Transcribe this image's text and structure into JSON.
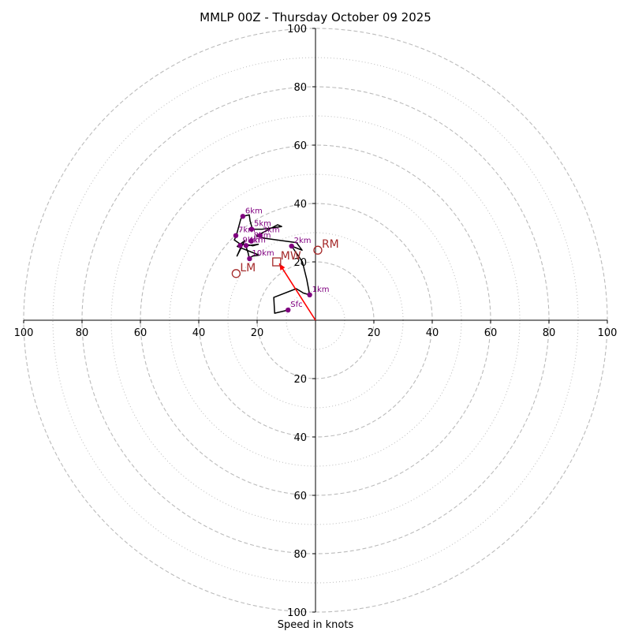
{
  "chart_data": {
    "type": "hodograph",
    "title": "MMLP 00Z - Thursday October 09 2025",
    "xlabel": "Speed in knots",
    "range": [
      -100,
      100
    ],
    "rings_major": [
      20,
      40,
      60,
      80,
      100
    ],
    "rings_minor": [
      10,
      30,
      50,
      70,
      90
    ],
    "x_ticks": [
      {
        "v": -100,
        "label": "100"
      },
      {
        "v": -80,
        "label": "80"
      },
      {
        "v": -60,
        "label": "60"
      },
      {
        "v": -40,
        "label": "40"
      },
      {
        "v": -20,
        "label": "20"
      },
      {
        "v": 20,
        "label": "20"
      },
      {
        "v": 40,
        "label": "40"
      },
      {
        "v": 60,
        "label": "60"
      },
      {
        "v": 80,
        "label": "80"
      },
      {
        "v": 100,
        "label": "100"
      }
    ],
    "y_ticks": [
      {
        "v": 100,
        "label": "100"
      },
      {
        "v": 80,
        "label": "80"
      },
      {
        "v": 60,
        "label": "60"
      },
      {
        "v": 40,
        "label": "40"
      },
      {
        "v": 20,
        "label": "20"
      },
      {
        "v": -20,
        "label": "20"
      },
      {
        "v": -40,
        "label": "40"
      },
      {
        "v": -60,
        "label": "60"
      },
      {
        "v": -80,
        "label": "80"
      },
      {
        "v": -100,
        "label": "100"
      }
    ],
    "trace": [
      [
        -9.4,
        3.5
      ],
      [
        -14.0,
        2.4
      ],
      [
        -14.3,
        7.8
      ],
      [
        -6.6,
        10.8
      ],
      [
        -4.1,
        9.3
      ],
      [
        -2.0,
        8.7
      ],
      [
        -3.0,
        14.0
      ],
      [
        -4.5,
        20.0
      ],
      [
        -8.2,
        25.4
      ],
      [
        -4.6,
        24.0
      ],
      [
        -6.5,
        26.6
      ],
      [
        -17.6,
        28.1
      ],
      [
        -20.2,
        28.9
      ],
      [
        -13.0,
        32.7
      ],
      [
        -11.6,
        32.1
      ],
      [
        -18.3,
        31.2
      ],
      [
        -21.6,
        31.2
      ],
      [
        -22.4,
        34.0
      ],
      [
        -22.7,
        36.1
      ],
      [
        -24.9,
        35.6
      ],
      [
        -25.6,
        34.7
      ],
      [
        -27.1,
        29.1
      ],
      [
        -27.8,
        27.5
      ],
      [
        -25.8,
        26.1
      ],
      [
        -23.3,
        25.9
      ],
      [
        -21.5,
        25.5
      ],
      [
        -19.6,
        26.0
      ],
      [
        -23.9,
        25.5
      ],
      [
        -23.1,
        23.1
      ],
      [
        -22.7,
        21.3
      ],
      [
        -21.5,
        22.0
      ],
      [
        -19.3,
        22.3
      ],
      [
        -26.8,
        25.3
      ],
      [
        -24.3,
        27.2
      ],
      [
        -26.9,
        22.0
      ],
      [
        -25.7,
        24.7
      ],
      [
        -26.1,
        25.3
      ]
    ],
    "height_points": [
      {
        "label": "Sfc",
        "u": -9.4,
        "v": 3.5
      },
      {
        "label": "1km",
        "u": -2.0,
        "v": 8.7
      },
      {
        "label": "2km",
        "u": -8.2,
        "v": 25.4
      },
      {
        "label": "3km",
        "u": -19.0,
        "v": 29.0
      },
      {
        "label": "4km",
        "u": -23.8,
        "v": 25.6
      },
      {
        "label": "5km",
        "u": -21.9,
        "v": 31.2
      },
      {
        "label": "6km",
        "u": -24.9,
        "v": 35.6
      },
      {
        "label": "7km",
        "u": -27.3,
        "v": 29.0
      },
      {
        "label": "8km",
        "u": -22.0,
        "v": 27.1
      },
      {
        "label": "9km",
        "u": -25.8,
        "v": 25.6
      },
      {
        "label": "10km",
        "u": -22.6,
        "v": 21.1
      }
    ],
    "storm_markers": [
      {
        "label": "RM",
        "u": 0.8,
        "v": 24.0,
        "marker": "circle"
      },
      {
        "label": "LM",
        "u": -27.2,
        "v": 16.0,
        "marker": "circle"
      },
      {
        "label": "MW",
        "u": -13.3,
        "v": 20.0,
        "marker": "square"
      }
    ],
    "shear_vector": {
      "from": [
        0,
        0
      ],
      "to": [
        -12.4,
        19.4
      ]
    },
    "colors": {
      "trace": "#000000",
      "points": "#800080",
      "markers": "#a52a2a",
      "vector": "#ff0000",
      "grid": "#bbbbbb"
    }
  }
}
